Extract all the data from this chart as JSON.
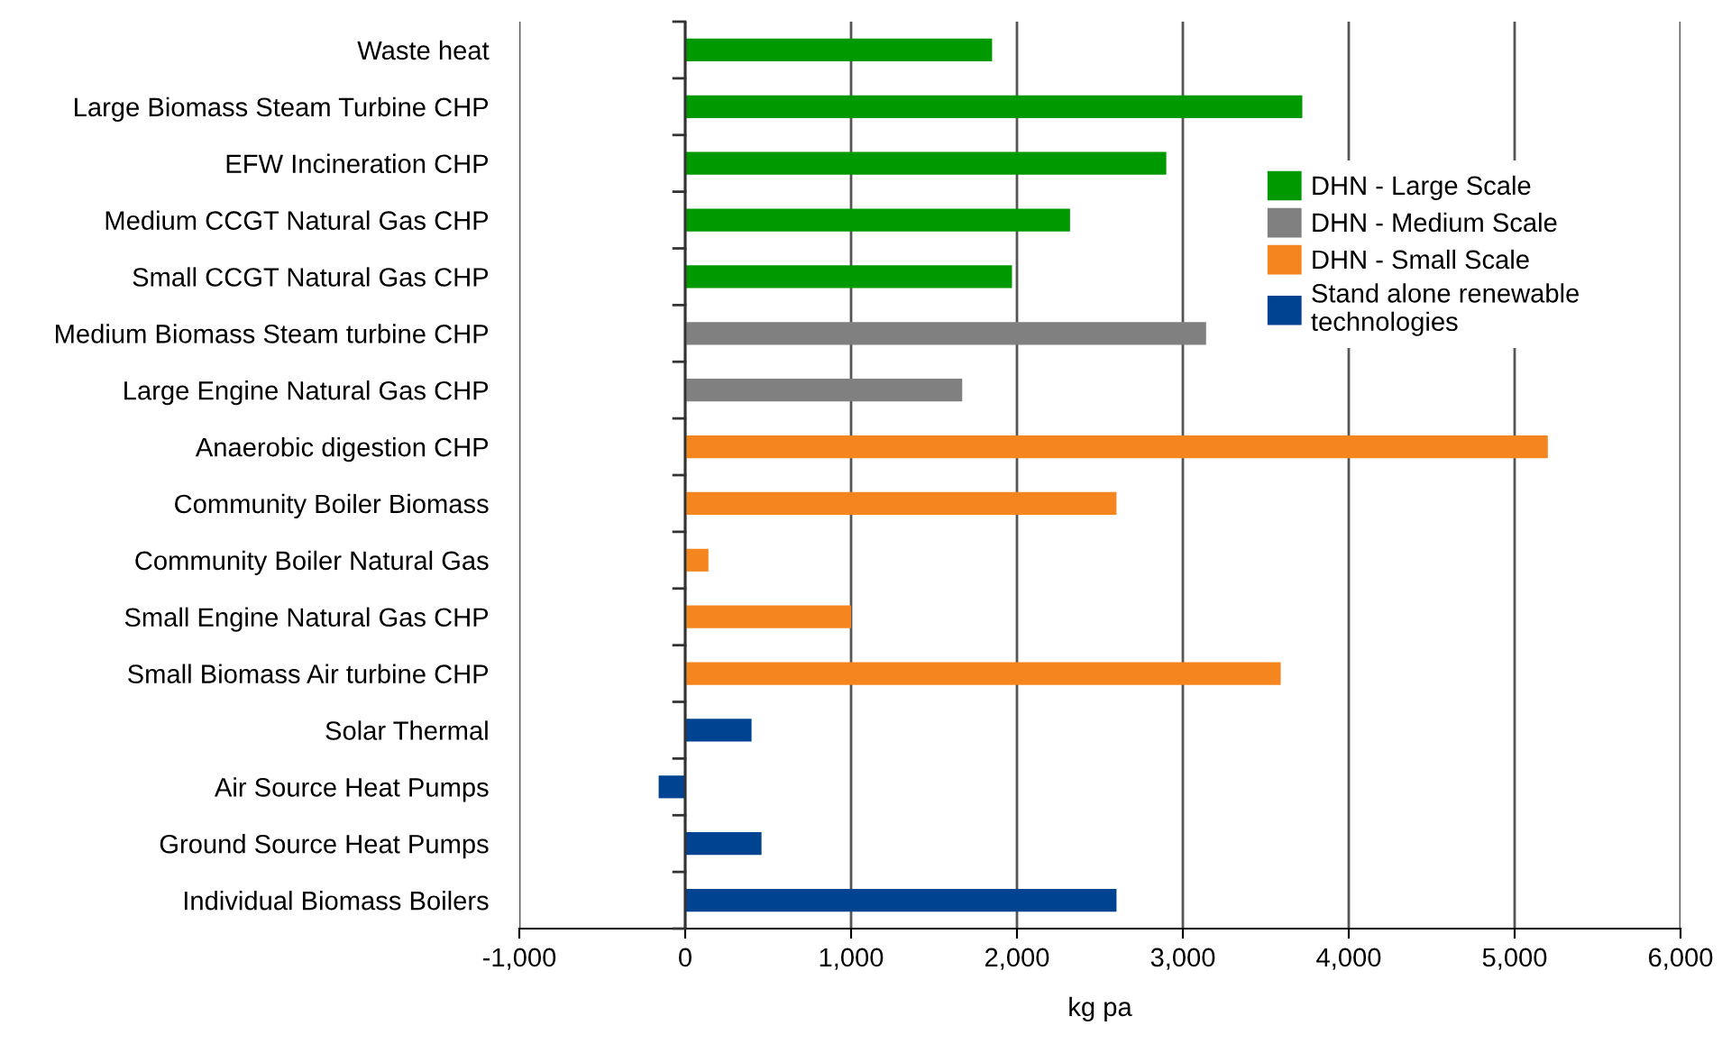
{
  "chart_data": {
    "type": "bar",
    "orientation": "horizontal",
    "xlabel": "kg pa",
    "categories": [
      "Waste heat",
      "Large Biomass Steam Turbine CHP",
      "EFW Incineration CHP",
      "Medium CCGT Natural Gas CHP",
      "Small CCGT Natural Gas CHP",
      "Medium Biomass Steam turbine CHP",
      "Large Engine Natural Gas CHP",
      "Anaerobic digestion CHP",
      "Community Boiler Biomass",
      "Community Boiler Natural Gas",
      "Small Engine Natural Gas CHP",
      "Small Biomass Air turbine CHP",
      "Solar Thermal",
      "Air Source Heat Pumps",
      "Ground Source Heat Pumps",
      "Individual Biomass Boilers"
    ],
    "series": [
      {
        "name": "DHN - Large Scale",
        "color": "#009900",
        "values": [
          1850,
          3720,
          2900,
          2320,
          1970,
          null,
          null,
          null,
          null,
          null,
          null,
          null,
          null,
          null,
          null,
          null
        ]
      },
      {
        "name": "DHN - Medium Scale",
        "color": "#808080",
        "values": [
          null,
          null,
          null,
          null,
          null,
          3140,
          1670,
          null,
          null,
          null,
          null,
          null,
          null,
          null,
          null,
          null
        ]
      },
      {
        "name": "DHN - Small Scale",
        "color": "#f5861f",
        "values": [
          null,
          null,
          null,
          null,
          null,
          null,
          null,
          5200,
          2600,
          140,
          1000,
          3590,
          null,
          null,
          null,
          null
        ]
      },
      {
        "name": "Stand alone renewable technologies",
        "color": "#004391",
        "values": [
          null,
          null,
          null,
          null,
          null,
          null,
          null,
          null,
          null,
          null,
          null,
          null,
          400,
          -160,
          460,
          2600
        ]
      }
    ],
    "xlim": [
      -1000,
      6000
    ],
    "xticks": [
      {
        "value": -1000,
        "label": "-1,000"
      },
      0,
      {
        "value": 1000,
        "label": "1,000"
      },
      {
        "value": 2000,
        "label": "2,000"
      },
      {
        "value": 3000,
        "label": "3,000"
      },
      {
        "value": 4000,
        "label": "4,000"
      },
      {
        "value": 5000,
        "label": "5,000"
      },
      {
        "value": 6000,
        "label": "6,000"
      }
    ],
    "grid": "x",
    "legend": "right"
  }
}
